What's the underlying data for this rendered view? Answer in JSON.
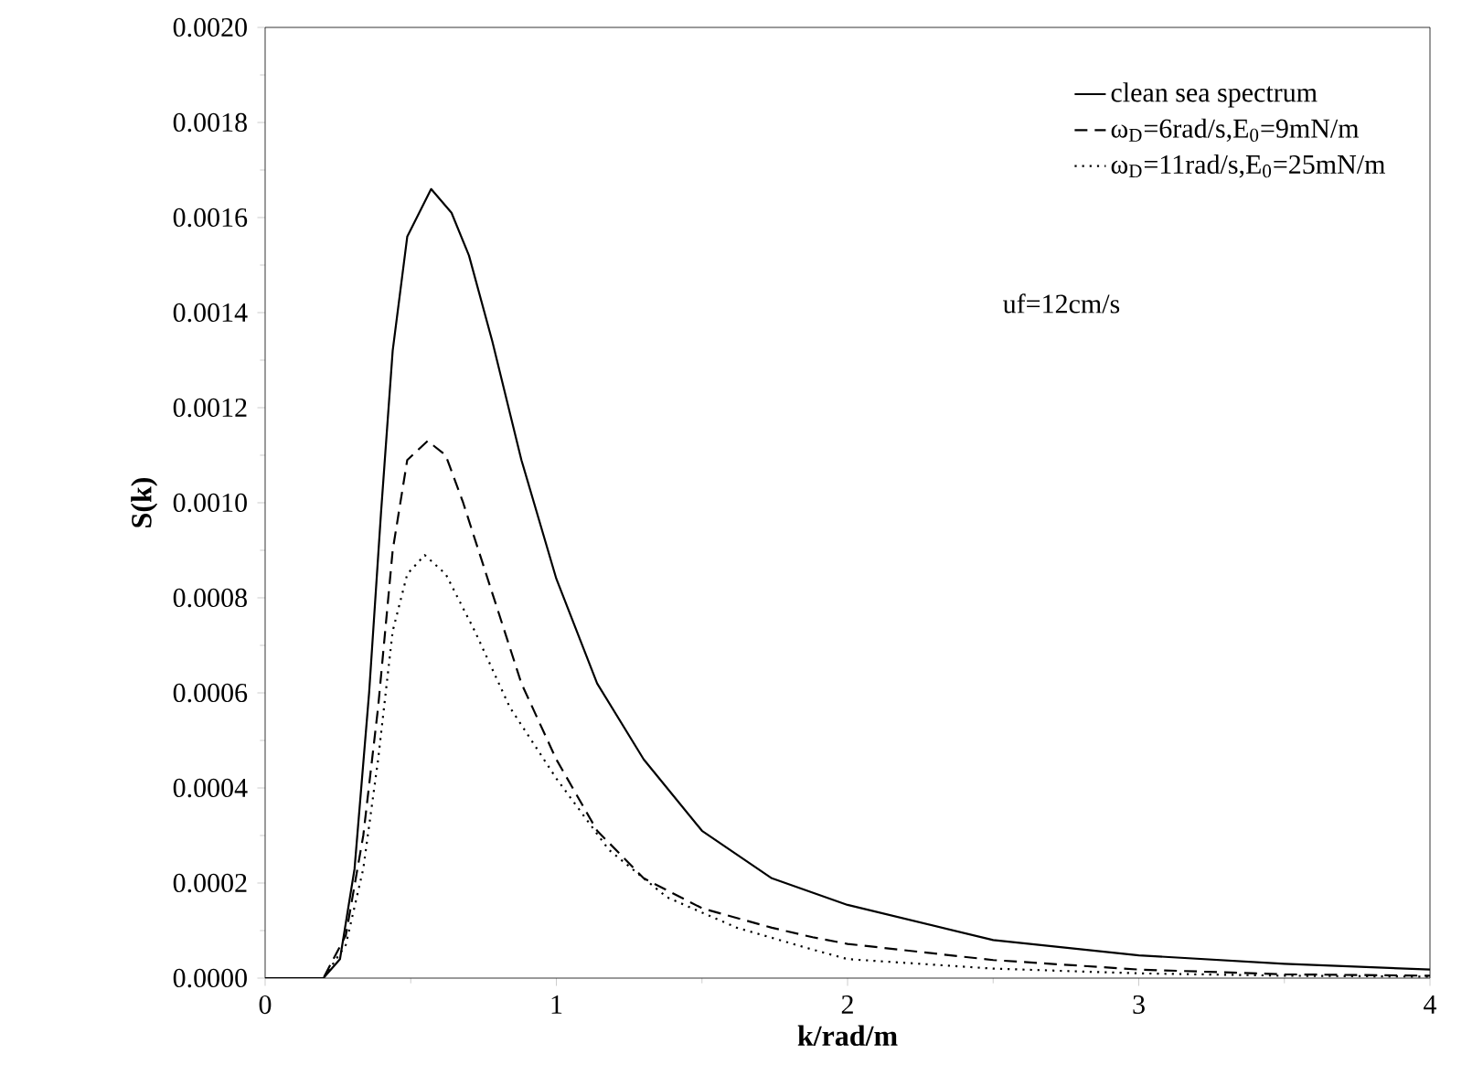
{
  "chart_data": {
    "type": "line",
    "xlabel": "k/rad/m",
    "ylabel": "S(k)",
    "xlim": [
      0,
      4
    ],
    "ylim": [
      0,
      0.002
    ],
    "xticks": [
      0,
      1,
      2,
      3,
      4
    ],
    "yticks": [
      {
        "value": 0,
        "label": "0.0000"
      },
      {
        "value": 0.0002,
        "label": "0.0002"
      },
      {
        "value": 0.0004,
        "label": "0.0004"
      },
      {
        "value": 0.0006,
        "label": "0.0006"
      },
      {
        "value": 0.0008,
        "label": "0.0008"
      },
      {
        "value": 0.001,
        "label": "0.0010"
      },
      {
        "value": 0.0012,
        "label": "0.0012"
      },
      {
        "value": 0.0014,
        "label": "0.0014"
      },
      {
        "value": 0.0016,
        "label": "0.0016"
      },
      {
        "value": 0.0018,
        "label": "0.0018"
      },
      {
        "value": 0.002,
        "label": "0.0020"
      }
    ],
    "legend": "top right",
    "grid": false,
    "marker": "none",
    "annotations": [
      "uf=12cm/s"
    ],
    "series": [
      {
        "name": "clean sea spectrum",
        "color": "#000000",
        "line_style": "solid",
        "x": [
          0,
          0.2,
          0.257,
          0.307,
          0.357,
          0.398,
          0.438,
          0.488,
          0.57,
          0.64,
          0.7,
          0.78,
          0.88,
          1.0,
          1.14,
          1.3,
          1.5,
          1.74,
          2.0,
          2.5,
          3.0,
          3.5,
          4.0
        ],
        "values": [
          0,
          0,
          4e-05,
          0.00023,
          0.0006,
          0.00098,
          0.00132,
          0.00156,
          0.00166,
          0.00161,
          0.00152,
          0.00134,
          0.00109,
          0.00084,
          0.00062,
          0.00046,
          0.00031,
          0.00021,
          0.000154,
          8e-05,
          4.8e-05,
          3e-05,
          1.8e-05
        ]
      },
      {
        "name": "ω$_{D}$=6rad/s,E$_{0}$=9mN/m",
        "color": "#000000",
        "line_style": "dashed",
        "x": [
          0,
          0.2,
          0.277,
          0.337,
          0.388,
          0.438,
          0.488,
          0.558,
          0.62,
          0.68,
          0.78,
          0.88,
          1.0,
          1.14,
          1.3,
          1.5,
          1.74,
          1.88,
          2.0,
          2.5,
          3.0,
          3.5,
          4.0
        ],
        "values": [
          0,
          0,
          9e-05,
          0.0003,
          0.00057,
          0.0009,
          0.00109,
          0.00113,
          0.0011,
          0.001,
          0.00081,
          0.00062,
          0.00046,
          0.00031,
          0.00021,
          0.000147,
          0.000106,
          8.6e-05,
          7.2e-05,
          3.8e-05,
          1.8e-05,
          8e-06,
          5e-06
        ]
      },
      {
        "name": "ω$_{D}$=11rad/s,E$_{0}$=25mN/m",
        "color": "#000000",
        "line_style": "dotted",
        "x": [
          0,
          0.2,
          0.277,
          0.337,
          0.388,
          0.438,
          0.488,
          0.548,
          0.62,
          0.72,
          0.84,
          1.0,
          1.18,
          1.38,
          1.62,
          1.88,
          2.0,
          2.5,
          3.0,
          3.5,
          4.0
        ],
        "values": [
          0,
          0,
          7e-05,
          0.00023,
          0.00046,
          0.00073,
          0.00085,
          0.00089,
          0.00085,
          0.00073,
          0.00057,
          0.00042,
          0.00027,
          0.00017,
          0.000106,
          6e-05,
          4e-05,
          2e-05,
          1e-05,
          5e-06,
          3e-06
        ]
      }
    ]
  }
}
